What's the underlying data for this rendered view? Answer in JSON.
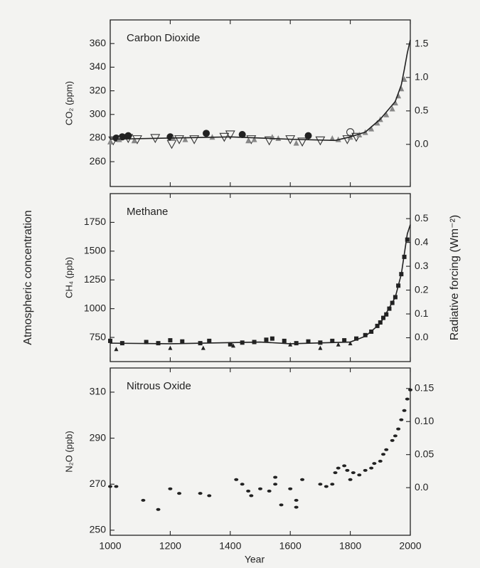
{
  "figure": {
    "ylabel": "Atmospheric concentration",
    "y2label": "Radiative forcing  (Wm⁻²)",
    "xlabel": "Year"
  },
  "chart_data": [
    {
      "type": "scatter",
      "title": "Carbon Dioxide",
      "ylabel": "CO₂ (ppm)",
      "xlim": [
        1000,
        2000
      ],
      "xticks": [
        1000,
        1200,
        1400,
        1600,
        1800,
        2000
      ],
      "show_xtick_labels": false,
      "ylim": [
        239,
        380
      ],
      "yticks": [
        260,
        280,
        300,
        320,
        340,
        360
      ],
      "y2lim": [
        -0.63,
        1.86
      ],
      "y2ticks": [
        {
          "value": 0,
          "label": "0.0"
        },
        0.5,
        {
          "value": 1,
          "label": "1.0"
        },
        1.5
      ],
      "series": [
        {
          "marker": "open-triangle",
          "color": "#333",
          "x": [
            1010,
            1060,
            1090,
            1150,
            1205,
            1230,
            1280,
            1380,
            1400,
            1470,
            1530,
            1600,
            1640,
            1700,
            1790,
            1820
          ],
          "values": [
            278,
            280,
            279,
            280,
            275,
            279,
            279,
            281,
            283,
            279,
            278,
            279,
            277,
            278,
            279,
            281
          ]
        },
        {
          "marker": "filled-circle",
          "color": "#222",
          "x": [
            1020,
            1040,
            1060,
            1200,
            1320,
            1440,
            1660
          ],
          "values": [
            280,
            281,
            282,
            281,
            284,
            283,
            282
          ]
        },
        {
          "marker": "gray-triangle",
          "color": "#888",
          "x": [
            1000,
            1030,
            1080,
            1210,
            1250,
            1340,
            1460,
            1480,
            1540,
            1560,
            1620,
            1740,
            1760,
            1800,
            1830,
            1850,
            1870,
            1890,
            1900,
            1920,
            1940,
            1950,
            1960,
            1970,
            1980
          ],
          "values": [
            277,
            279,
            278,
            280,
            279,
            281,
            278,
            279,
            281,
            280,
            276,
            280,
            279,
            281,
            283,
            285,
            288,
            293,
            296,
            300,
            305,
            310,
            316,
            322,
            330
          ]
        },
        {
          "marker": "open-circle",
          "color": "#333",
          "x": [
            1800
          ],
          "values": [
            285
          ]
        },
        {
          "marker": "line",
          "color": "#222",
          "x": [
            1000,
            1200,
            1400,
            1600,
            1750,
            1800,
            1850,
            1900,
            1930,
            1950,
            1970,
            1980,
            1990,
            2000
          ],
          "values": [
            279,
            280,
            281,
            279,
            278,
            281,
            285,
            296,
            305,
            311,
            325,
            338,
            352,
            363
          ]
        }
      ]
    },
    {
      "type": "scatter",
      "title": "Methane",
      "ylabel": "CH₄ (ppb)",
      "xlim": [
        1000,
        2000
      ],
      "xticks": [
        1000,
        1200,
        1400,
        1600,
        1800,
        2000
      ],
      "show_xtick_labels": false,
      "ylim": [
        540,
        2000
      ],
      "yticks": [
        750,
        1000,
        1250,
        1500,
        1750
      ],
      "y2lim": [
        -0.1,
        0.605
      ],
      "y2ticks": [
        {
          "value": 0,
          "label": "0.0"
        },
        0.1,
        0.2,
        0.3,
        0.4,
        0.5
      ],
      "series": [
        {
          "marker": "square",
          "color": "#222",
          "x": [
            1000,
            1040,
            1120,
            1160,
            1200,
            1240,
            1300,
            1330,
            1400,
            1440,
            1480,
            1520,
            1540,
            1580,
            1620,
            1660,
            1700,
            1740,
            1780,
            1820,
            1850,
            1870,
            1890,
            1900,
            1910,
            1920,
            1930,
            1940,
            1950,
            1960,
            1970,
            1980,
            1990
          ],
          "values": [
            720,
            700,
            710,
            700,
            725,
            715,
            700,
            720,
            690,
            705,
            710,
            730,
            740,
            720,
            700,
            715,
            705,
            720,
            725,
            740,
            770,
            800,
            850,
            880,
            920,
            950,
            1000,
            1050,
            1100,
            1200,
            1300,
            1450,
            1600
          ]
        },
        {
          "marker": "triangle",
          "color": "#222",
          "x": [
            1020,
            1200,
            1310,
            1410,
            1600,
            1700,
            1760,
            1800
          ],
          "values": [
            650,
            660,
            660,
            680,
            690,
            660,
            690,
            700
          ]
        },
        {
          "marker": "line",
          "color": "#222",
          "x": [
            1000,
            1200,
            1500,
            1600,
            1800,
            1850,
            1900,
            1950,
            1970,
            1990,
            2000
          ],
          "values": [
            700,
            695,
            710,
            695,
            710,
            760,
            870,
            1100,
            1300,
            1650,
            1730
          ]
        }
      ]
    },
    {
      "type": "scatter",
      "title": "Nitrous Oxide",
      "ylabel": "N₂O (ppb)",
      "xlim": [
        1000,
        2000
      ],
      "xticks": [
        1000,
        1200,
        1400,
        1600,
        1800,
        2000
      ],
      "show_xtick_labels": true,
      "ylim": [
        247.8,
        320.5
      ],
      "yticks": [
        250,
        270,
        290,
        310
      ],
      "y2lim": [
        -0.072,
        0.181
      ],
      "y2ticks": [
        {
          "value": 0,
          "label": "0.0"
        },
        0.05,
        {
          "value": 0.1,
          "label": "0.10"
        },
        0.15
      ],
      "series": [
        {
          "marker": "dot",
          "color": "#222",
          "x": [
            1000,
            1020,
            1110,
            1160,
            1200,
            1230,
            1300,
            1330,
            1420,
            1440,
            1460,
            1470,
            1500,
            1530,
            1550,
            1550,
            1570,
            1600,
            1620,
            1620,
            1640,
            1700,
            1720,
            1740,
            1750,
            1760,
            1780,
            1790,
            1800,
            1810,
            1830,
            1850,
            1870,
            1880,
            1900,
            1910,
            1920,
            1940,
            1950,
            1960,
            1970,
            1980,
            1990,
            2000
          ],
          "values": [
            269,
            269,
            263,
            259,
            268,
            266,
            266,
            265,
            272,
            270,
            267,
            265,
            268,
            267,
            273,
            270,
            261,
            268,
            263,
            260,
            272,
            270,
            269,
            270,
            275,
            277,
            278,
            276,
            272,
            275,
            274,
            276,
            277,
            279,
            280,
            283,
            285,
            289,
            291,
            294,
            298,
            302,
            307,
            311
          ]
        }
      ]
    }
  ]
}
